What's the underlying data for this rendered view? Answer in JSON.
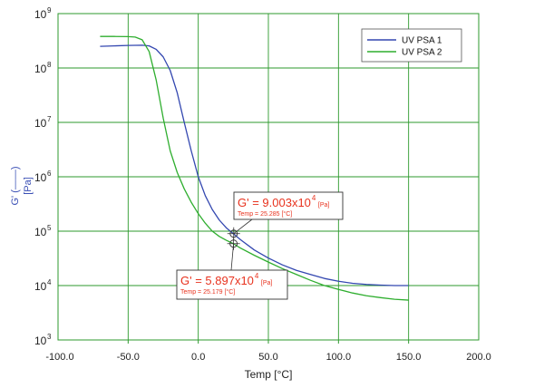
{
  "chart_data": {
    "type": "line",
    "xlabel": "Temp [°C]",
    "ylabel_symbol": "G' (——)",
    "ylabel_unit": "[Pa]",
    "xlim": [
      -100,
      200
    ],
    "ylim": [
      1000,
      1000000000
    ],
    "yscale": "log",
    "grid": true,
    "legend_position": "top-right",
    "x_ticks": [
      "-100.0",
      "-50.0",
      "0.0",
      "50.0",
      "100.0",
      "150.0",
      "200.0"
    ],
    "y_tick_exponents": [
      3,
      4,
      5,
      6,
      7,
      8,
      9
    ],
    "y_tick_base": "10",
    "series": [
      {
        "name": "UV PSA 1",
        "color": "#3347b0",
        "x": [
          -70,
          -60,
          -50,
          -40,
          -35,
          -30,
          -25,
          -20,
          -15,
          -10,
          -5,
          0,
          5,
          10,
          15,
          20,
          25,
          30,
          40,
          50,
          60,
          70,
          80,
          90,
          100,
          110,
          120,
          130,
          140,
          150
        ],
        "y": [
          250000000,
          255000000,
          260000000,
          262000000,
          255000000,
          220000000,
          160000000,
          90000000,
          35000000,
          10000000,
          3000000,
          1000000,
          450000,
          250000,
          160000,
          115000,
          90030,
          70000,
          45000,
          32000,
          24000,
          19000,
          16000,
          13500,
          12000,
          11000,
          10500,
          10200,
          10000,
          10000
        ]
      },
      {
        "name": "UV PSA 2",
        "color": "#2fae2f",
        "x": [
          -70,
          -60,
          -50,
          -45,
          -40,
          -35,
          -30,
          -25,
          -20,
          -15,
          -10,
          -5,
          0,
          5,
          10,
          15,
          20,
          25,
          30,
          40,
          50,
          60,
          70,
          80,
          90,
          100,
          110,
          120,
          130,
          140,
          150
        ],
        "y": [
          380000000,
          380000000,
          378000000,
          370000000,
          330000000,
          200000000,
          60000000,
          12000000,
          3000000,
          1200000,
          600000,
          340000,
          210000,
          140000,
          100000,
          80000,
          68000,
          58970,
          49000,
          36000,
          27000,
          20500,
          16000,
          12500,
          10000,
          8500,
          7300,
          6500,
          6000,
          5600,
          5400
        ]
      }
    ],
    "annotations": [
      {
        "series": "UV PSA 1",
        "label_prefix": "G' = ",
        "mantissa": "9.003x10",
        "exponent": "4",
        "unit": "[Pa]",
        "temp_text": "Temp = 25.285 [°C]",
        "x": 25.285,
        "y": 90030
      },
      {
        "series": "UV PSA 2",
        "label_prefix": "G' = ",
        "mantissa": "5.897x10",
        "exponent": "4",
        "unit": "[Pa]",
        "temp_text": "Temp = 25.179 [°C]",
        "x": 25.179,
        "y": 58970
      }
    ]
  }
}
